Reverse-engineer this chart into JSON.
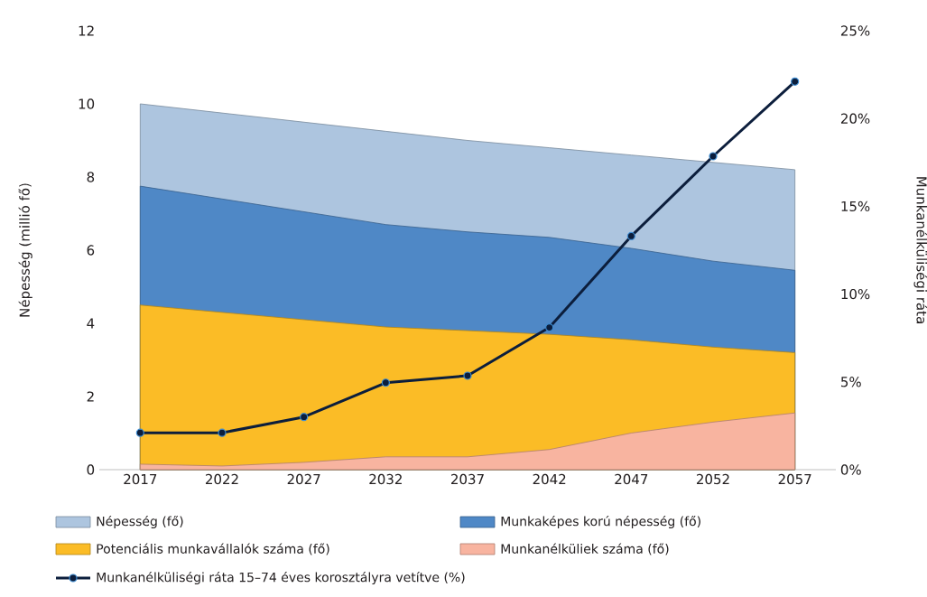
{
  "chart_data": {
    "type": "area",
    "categories": [
      "2017",
      "2022",
      "2027",
      "2032",
      "2037",
      "2042",
      "2047",
      "2052",
      "2057"
    ],
    "series": [
      {
        "name": "Népesség (fő)",
        "color": "#adc5df",
        "values": [
          10.0,
          9.75,
          9.5,
          9.25,
          9.0,
          8.8,
          8.6,
          8.4,
          8.2
        ]
      },
      {
        "name": "Munkaképes korú népesség (fő)",
        "color": "#4f88c6",
        "values": [
          7.75,
          7.4,
          7.05,
          6.7,
          6.5,
          6.35,
          6.05,
          5.7,
          5.45
        ]
      },
      {
        "name": "Potenciális munkavállalók száma (fő)",
        "color": "#fbbc26",
        "values": [
          4.5,
          4.3,
          4.1,
          3.9,
          3.8,
          3.7,
          3.55,
          3.35,
          3.2
        ]
      },
      {
        "name": "Munkanélküliek száma (fő)",
        "color": "#f8b4a0",
        "values": [
          0.15,
          0.1,
          0.2,
          0.35,
          0.35,
          0.55,
          1.0,
          1.3,
          1.55
        ]
      },
      {
        "name": "Munkanélküliségi ráta 15–74 éves korosztályra vetítve (%)",
        "type": "line",
        "axis": "y2",
        "color": "#0c1e3c",
        "marker": "circle",
        "values": [
          2.1,
          2.1,
          3.0,
          4.95,
          5.35,
          8.1,
          13.3,
          17.85,
          22.1
        ]
      }
    ],
    "ylabel": "Népesség (millió fő)",
    "y2label": "Munkanélküliségi ráta",
    "ylim": [
      0,
      12
    ],
    "yticks": [
      0,
      2,
      4,
      6,
      8,
      10,
      12
    ],
    "y2lim": [
      0,
      25
    ],
    "y2ticks": [
      {
        "value": 0,
        "label": "0%"
      },
      {
        "value": 5,
        "label": "5%"
      },
      {
        "value": 10,
        "label": "10%"
      },
      {
        "value": 15,
        "label": "15%"
      },
      {
        "value": 20,
        "label": "20%"
      },
      {
        "value": 25,
        "label": "25%"
      }
    ],
    "legend": "bottom"
  }
}
